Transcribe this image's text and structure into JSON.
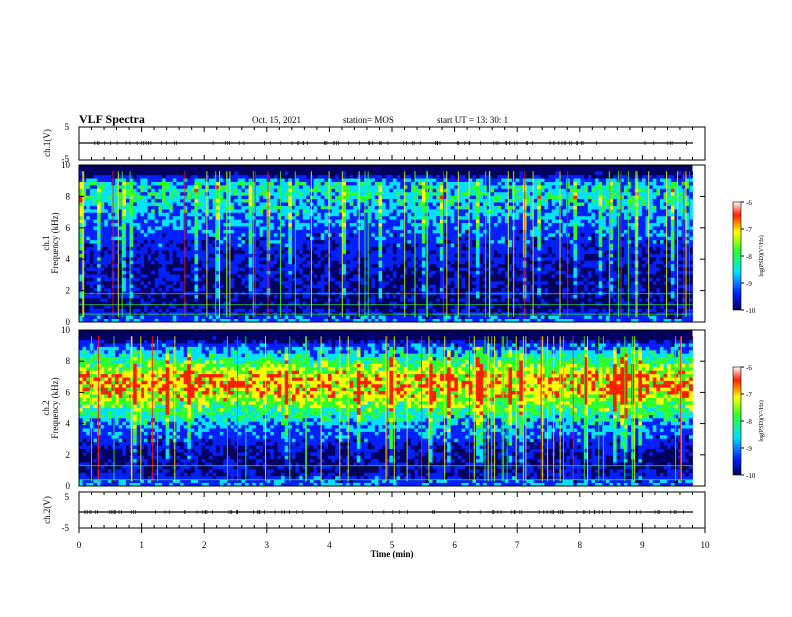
{
  "header": {
    "title": "VLF Spectra",
    "date": "Oct. 15, 2021",
    "station": "station= MOS",
    "start": "start  UT =  13: 30: 1"
  },
  "xaxis": {
    "label": "Time (min)",
    "ticks": [
      "0",
      "1",
      "2",
      "3",
      "4",
      "5",
      "6",
      "7",
      "8",
      "9",
      "10"
    ]
  },
  "panels": {
    "ch1_wave": {
      "ylabel": "ch.1(V)",
      "ticks": [
        "5",
        "-5"
      ]
    },
    "ch1_spec": {
      "ylabel_top": "ch.1",
      "ylabel_bottom": "Frequency (kHz)",
      "ticks": [
        "10",
        "8",
        "6",
        "4",
        "2",
        "0"
      ]
    },
    "ch2_spec": {
      "ylabel_top": "ch.2",
      "ylabel_bottom": "Frequency (kHz)",
      "ticks": [
        "10",
        "8",
        "6",
        "4",
        "2",
        "0"
      ]
    },
    "ch2_wave": {
      "ylabel": "ch.2(V)",
      "ticks": [
        "5",
        "-5"
      ]
    }
  },
  "colorbar": {
    "label": "log(PSD)(V²/Hz)",
    "ticks": [
      "-6",
      "-7",
      "-8",
      "-9",
      "-10"
    ]
  },
  "colors": {
    "dark": "#000060",
    "blue": "#0020ff",
    "cyan": "#00e0ff",
    "green": "#30ff30",
    "yellow": "#ffff00",
    "red": "#ff2000"
  },
  "chart_data": [
    {
      "type": "line",
      "ylabel": "ch.1(V)",
      "xlabel": "Time (min)",
      "xlim": [
        0,
        10
      ],
      "ylim": [
        -5,
        5
      ],
      "x": [
        0,
        9.8
      ],
      "values": [
        0,
        0
      ]
    },
    {
      "type": "heatmap",
      "ylabel": "Frequency (kHz)",
      "xlabel": "Time (min)",
      "xlim": [
        0,
        10
      ],
      "ylim": [
        0,
        10
      ],
      "clim": [
        -10,
        -6
      ],
      "frequency_khz": [
        0,
        1,
        2,
        3,
        4,
        5,
        6,
        7,
        8,
        9,
        9.6
      ],
      "log_psd": [
        -8.4,
        -9.5,
        -9.4,
        -9.3,
        -9.1,
        -8.9,
        -8.6,
        -8.3,
        -8.0,
        -8.2,
        -10
      ]
    },
    {
      "type": "heatmap",
      "ylabel": "Frequency (kHz)",
      "xlabel": "Time (min)",
      "xlim": [
        0,
        10
      ],
      "ylim": [
        0,
        10
      ],
      "clim": [
        -10,
        -6
      ],
      "frequency_khz": [
        0,
        1,
        2,
        3,
        4,
        5,
        6,
        7,
        8,
        9,
        9.6
      ],
      "log_psd": [
        -8.4,
        -9.3,
        -9.4,
        -8.8,
        -8.3,
        -7.6,
        -6.9,
        -6.8,
        -7.7,
        -8.6,
        -10
      ]
    },
    {
      "type": "line",
      "ylabel": "ch.2(V)",
      "xlabel": "Time (min)",
      "xlim": [
        0,
        10
      ],
      "ylim": [
        -5,
        5
      ],
      "x": [
        0,
        9.8
      ],
      "values": [
        0,
        0
      ]
    }
  ]
}
